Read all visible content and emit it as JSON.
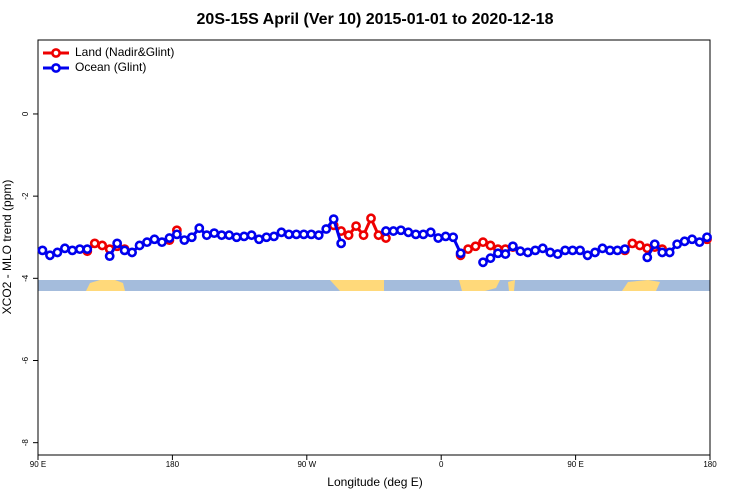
{
  "chart_data": {
    "type": "line",
    "title": "20S-15S April (Ver 10)   2015-01-01 to 2020-12-18",
    "x_label": "Longitude (deg E)",
    "y_label": "XCO2 - MLO trend (ppm)",
    "x": [
      93,
      98,
      103,
      108,
      113,
      118,
      123,
      128,
      133,
      138,
      143,
      148,
      153,
      158,
      163,
      168,
      173,
      178,
      183,
      188,
      193,
      198,
      203,
      208,
      213,
      218,
      223,
      228,
      233,
      238,
      243,
      248,
      253,
      258,
      263,
      268,
      273,
      278,
      283,
      288,
      293,
      298,
      303,
      308,
      313,
      318,
      323,
      328,
      333,
      338,
      343,
      348,
      353,
      358,
      363,
      368,
      373,
      378,
      383,
      388,
      393,
      398,
      403,
      408,
      413,
      418,
      423,
      428,
      433,
      438,
      443,
      448,
      453,
      458,
      463,
      468,
      473,
      478,
      483,
      488,
      493,
      498,
      503,
      508,
      513,
      518,
      523,
      528,
      533,
      538
    ],
    "series": [
      {
        "name": "Land (Nadir&Glint)",
        "color": "#ee0000",
        "values": [
          null,
          null,
          null,
          null,
          null,
          null,
          -3.34,
          -3.15,
          -3.2,
          -3.29,
          -3.22,
          -3.29,
          null,
          null,
          null,
          null,
          null,
          -3.07,
          -2.83,
          null,
          null,
          null,
          null,
          null,
          null,
          null,
          null,
          null,
          null,
          null,
          null,
          null,
          null,
          null,
          null,
          null,
          null,
          null,
          null,
          -2.71,
          -2.85,
          -2.95,
          -2.73,
          -2.95,
          -2.54,
          -2.95,
          -3.02,
          null,
          null,
          null,
          null,
          null,
          null,
          null,
          null,
          null,
          -3.44,
          -3.29,
          -3.22,
          -3.12,
          -3.2,
          -3.29,
          -3.29,
          -3.24,
          null,
          null,
          null,
          null,
          null,
          null,
          null,
          null,
          null,
          null,
          null,
          null,
          null,
          null,
          -3.32,
          -3.15,
          -3.2,
          -3.27,
          -3.24,
          -3.29,
          null,
          null,
          null,
          null,
          null,
          -3.05
        ]
      },
      {
        "name": "Ocean (Glint)",
        "color": "#0000ee",
        "values": [
          -3.32,
          -3.44,
          -3.37,
          -3.27,
          -3.32,
          -3.29,
          -3.29,
          null,
          null,
          -3.46,
          -3.15,
          -3.32,
          -3.37,
          -3.2,
          -3.12,
          -3.05,
          -3.12,
          -3.02,
          -2.93,
          -3.07,
          -3.0,
          -2.78,
          -2.95,
          -2.9,
          -2.95,
          -2.95,
          -3.0,
          -2.98,
          -2.95,
          -3.05,
          -3.0,
          -2.98,
          -2.88,
          -2.93,
          -2.93,
          -2.93,
          -2.93,
          -2.95,
          -2.8,
          -2.56,
          -3.15,
          null,
          null,
          null,
          null,
          null,
          -2.85,
          -2.85,
          -2.83,
          -2.88,
          -2.93,
          -2.93,
          -2.88,
          -3.02,
          -2.98,
          -3.0,
          -3.39,
          null,
          null,
          -3.61,
          -3.51,
          -3.39,
          -3.41,
          -3.22,
          -3.34,
          -3.37,
          -3.32,
          -3.27,
          -3.37,
          -3.41,
          -3.32,
          -3.32,
          -3.32,
          -3.44,
          -3.37,
          -3.27,
          -3.32,
          -3.32,
          -3.29,
          null,
          null,
          -3.49,
          -3.17,
          -3.37,
          -3.37,
          -3.17,
          -3.1,
          -3.05,
          -3.12,
          -3.0
        ]
      }
    ],
    "xlim": [
      90,
      540
    ],
    "xticks": [
      {
        "value": 90,
        "label": "90 E"
      },
      180,
      {
        "value": 270,
        "label": "90 W"
      },
      {
        "value": 360,
        "label": "0"
      },
      {
        "value": 450,
        "label": "90 E"
      },
      {
        "value": 540,
        "label": "180"
      }
    ],
    "ylim": [
      -8.3,
      1.8
    ],
    "yticks": [
      0,
      -2,
      -4,
      -6,
      -8
    ],
    "legend": "top-left"
  }
}
